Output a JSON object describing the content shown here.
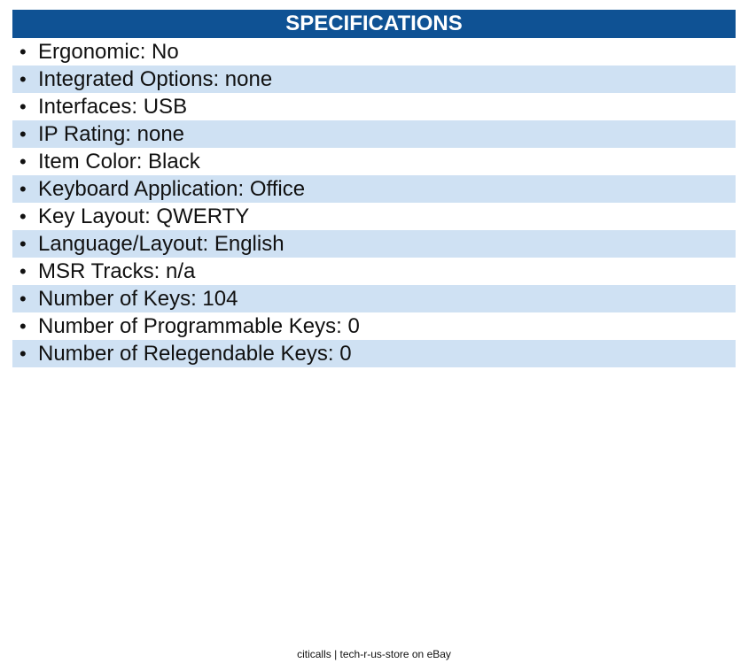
{
  "header": {
    "title": "SPECIFICATIONS"
  },
  "specs": [
    {
      "text": "Ergonomic: No"
    },
    {
      "text": "Integrated Options: none"
    },
    {
      "text": "Interfaces: USB"
    },
    {
      "text": "IP Rating: none"
    },
    {
      "text": "Item Color: Black"
    },
    {
      "text": "Keyboard Application: Office"
    },
    {
      "text": "Key Layout: QWERTY"
    },
    {
      "text": "Language/Layout: English"
    },
    {
      "text": "MSR Tracks: n/a"
    },
    {
      "text": "Number of Keys: 104"
    },
    {
      "text": "Number of Programmable Keys: 0"
    },
    {
      "text": "Number of Relegendable Keys: 0"
    }
  ],
  "bullet_glyph": "•",
  "footer": {
    "text": "citicalls | tech-r-us-store on eBay"
  },
  "colors": {
    "header_bg": "#0f5294",
    "stripe_bg": "#cfe1f3"
  }
}
